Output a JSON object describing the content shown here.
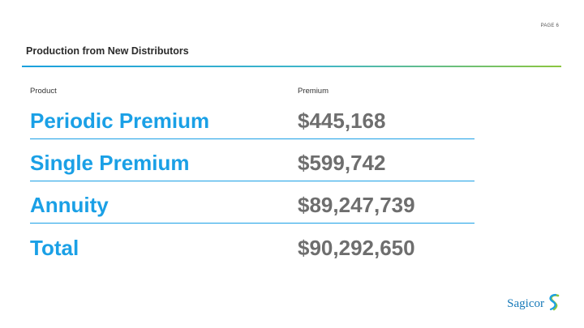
{
  "page_label": "PAGE 6",
  "title": "Production from New Distributors",
  "table": {
    "headers": [
      "Product",
      "Premium"
    ],
    "rows": [
      {
        "product": "Periodic Premium",
        "premium": "$445,168"
      },
      {
        "product": "Single Premium",
        "premium": "$599,742"
      },
      {
        "product": "Annuity",
        "premium": "$89,247,739"
      },
      {
        "product": "Total",
        "premium": "$90,292,650"
      }
    ]
  },
  "logo": {
    "text": "Sagicor",
    "icon": "sagicor-s-icon"
  },
  "colors": {
    "accent_blue": "#1aa0e6",
    "value_gray": "#6e6e6e",
    "rule_green": "#8cc63f",
    "logo_blue": "#1578b8"
  }
}
